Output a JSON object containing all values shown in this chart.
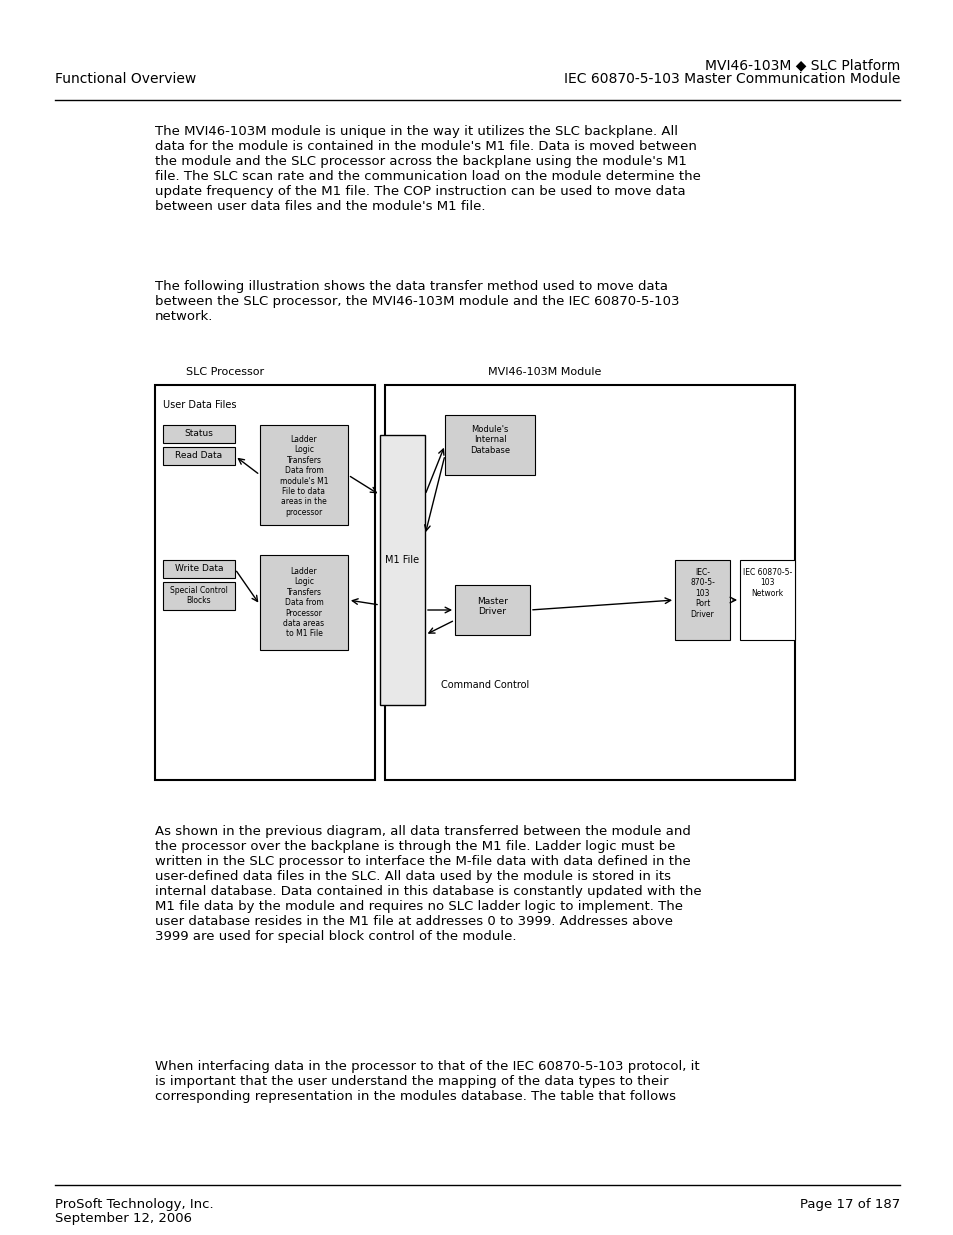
{
  "page_title_left": "Functional Overview",
  "page_title_right_line1": "MVI46-103M ◆ SLC Platform",
  "page_title_right_line2": "IEC 60870-5-103 Master Communication Module",
  "footer_left_line1": "ProSoft Technology, Inc.",
  "footer_left_line2": "September 12, 2006",
  "footer_right": "Page 17 of 187",
  "para1": "The MVI46-103M module is unique in the way it utilizes the SLC backplane. All\ndata for the module is contained in the module's M1 file. Data is moved between\nthe module and the SLC processor across the backplane using the module's M1\nfile. The SLC scan rate and the communication load on the module determine the\nupdate frequency of the M1 file. The COP instruction can be used to move data\nbetween user data files and the module's M1 file.",
  "para2": "The following illustration shows the data transfer method used to move data\nbetween the SLC processor, the MVI46-103M module and the IEC 60870-5-103\nnetwork.",
  "para3": "As shown in the previous diagram, all data transferred between the module and\nthe processor over the backplane is through the M1 file. Ladder logic must be\nwritten in the SLC processor to interface the M-file data with data defined in the\nuser-defined data files in the SLC. All data used by the module is stored in its\ninternal database. Data contained in this database is constantly updated with the\nM1 file data by the module and requires no SLC ladder logic to implement. The\nuser database resides in the M1 file at addresses 0 to 3999. Addresses above\n3999 are used for special block control of the module.",
  "para4": "When interfacing data in the processor to that of the IEC 60870-5-103 protocol, it\nis important that the user understand the mapping of the data types to their\ncorresponding representation in the modules database. The table that follows",
  "diagram_label_slc": "SLC Processor",
  "diagram_label_mvi": "MVI46-103M Module",
  "diagram_label_udf": "User Data Files",
  "diagram_label_status": "Status",
  "diagram_label_read": "Read Data",
  "diagram_label_write": "Write Data",
  "diagram_label_scb": "Special Control\nBlocks",
  "diagram_label_ll1": "Ladder\nLogic\nTransfers\nData from\nmodule's M1\nFile to data\nareas in the\nprocessor",
  "diagram_label_ll2": "Ladder\nLogic\nTransfers\nData from\nProcessor\ndata areas\nto M1 File",
  "diagram_label_m1": "M1 File",
  "diagram_label_mod_db": "Module's\nInternal\nDatabase",
  "diagram_label_master": "Master\nDriver",
  "diagram_label_cmd": "Command Control",
  "diagram_label_iec1": "IEC-\n870-5-\n103\nPort\nDriver",
  "diagram_label_iec2": "IEC 60870-5-\n103\nNetwork",
  "background_color": "#ffffff",
  "text_color": "#000000",
  "diagram_border_color": "#000000",
  "box_fill": "#ffffff",
  "gray_fill": "#c0c0c0"
}
